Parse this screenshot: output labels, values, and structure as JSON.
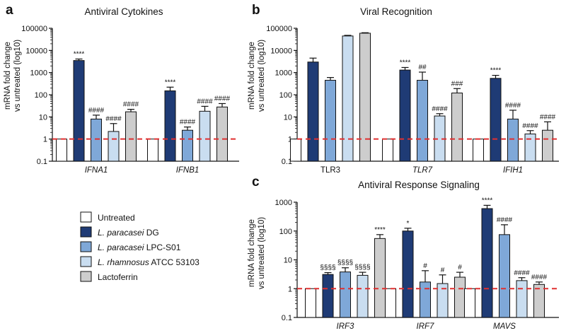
{
  "colors": {
    "untreated": "#ffffff",
    "dg": "#1f3b75",
    "lpc": "#7fa8d8",
    "atcc": "#c9ddf0",
    "lactoferrin": "#cdcdcd",
    "baseline": "#e03030",
    "stroke": "#111111"
  },
  "legend": [
    {
      "key": "untreated",
      "prefix": "",
      "italic": "",
      "suffix": "Untreated"
    },
    {
      "key": "dg",
      "prefix": "",
      "italic": "L. paracasei",
      "suffix": " DG"
    },
    {
      "key": "lpc",
      "prefix": "",
      "italic": "L. paracasei",
      "suffix": " LPC-S01"
    },
    {
      "key": "atcc",
      "prefix": "",
      "italic": "L. rhamnosus",
      "suffix": " ATCC 53103"
    },
    {
      "key": "lactoferrin",
      "prefix": "",
      "italic": "",
      "suffix": "Lactoferrin"
    }
  ],
  "chart_data": [
    {
      "panel": "a",
      "type": "bar",
      "title": "Antiviral Cytokines",
      "ylabel": [
        "mRNA fold change",
        "vs untreated (log10)"
      ],
      "yscale": "log10",
      "ylim": [
        0.1,
        100000
      ],
      "yticks": [
        "0.1",
        "1",
        "10",
        "100",
        "1000",
        "10000",
        "100000"
      ],
      "baseline": 1,
      "categories": [
        {
          "label": "IFNA1",
          "italic": true
        },
        {
          "label": "IFNB1",
          "italic": true
        }
      ],
      "series_keys": [
        "untreated",
        "dg",
        "lpc",
        "atcc",
        "lactoferrin"
      ],
      "values": [
        [
          1,
          3500,
          8,
          2.2,
          17
        ],
        [
          1,
          150,
          2.5,
          18,
          28
        ]
      ],
      "errors": [
        [
          0,
          600,
          4,
          2.8,
          5
        ],
        [
          0,
          70,
          1,
          12,
          12
        ]
      ],
      "annotations": [
        [
          "",
          "****",
          "####",
          "####",
          "####"
        ],
        [
          "",
          "****",
          "####",
          "####",
          "####"
        ]
      ]
    },
    {
      "panel": "b",
      "type": "bar",
      "title": "Viral Recognition",
      "ylabel": [
        "mRNA fold change",
        "vs untreated (log10)"
      ],
      "yscale": "log10",
      "ylim": [
        0.1,
        100000
      ],
      "yticks": [
        "0.1",
        "1",
        "10",
        "100",
        "1000",
        "10000",
        "100000"
      ],
      "baseline": 1,
      "categories": [
        {
          "label": "TLR3",
          "italic": false
        },
        {
          "label": "TLR7",
          "italic": true
        },
        {
          "label": "IFIH1",
          "italic": true
        }
      ],
      "series_keys": [
        "untreated",
        "dg",
        "lpc",
        "atcc",
        "lactoferrin"
      ],
      "values": [
        [
          1,
          3000,
          450,
          45000,
          60000
        ],
        [
          1,
          1300,
          450,
          11,
          120
        ],
        [
          1,
          550,
          8,
          1.7,
          2.5
        ]
      ],
      "errors": [
        [
          0,
          1500,
          150,
          3000,
          3000
        ],
        [
          0,
          400,
          600,
          3,
          70
        ],
        [
          0,
          200,
          12,
          0.7,
          3.5
        ]
      ],
      "annotations": [
        [
          "",
          "",
          "",
          "",
          ""
        ],
        [
          "",
          "****",
          "##",
          "####",
          "###"
        ],
        [
          "",
          "****",
          "####",
          "####",
          "####"
        ]
      ]
    },
    {
      "panel": "c",
      "type": "bar",
      "title": "Antiviral Response Signaling",
      "ylabel": [
        "mRNA fold change",
        "vs untreated (log10)"
      ],
      "yscale": "log10",
      "ylim": [
        0.1,
        1000
      ],
      "yticks": [
        "0.1",
        "1",
        "10",
        "100",
        "1000"
      ],
      "baseline": 1,
      "categories": [
        {
          "label": "IRF3",
          "italic": true
        },
        {
          "label": "IRF7",
          "italic": true
        },
        {
          "label": "MAVS",
          "italic": true
        }
      ],
      "series_keys": [
        "untreated",
        "dg",
        "lpc",
        "atcc",
        "lactoferrin"
      ],
      "values": [
        [
          1,
          3.1,
          3.8,
          2.9,
          55
        ],
        [
          1,
          100,
          1.7,
          1.5,
          2.5
        ],
        [
          1,
          600,
          75,
          1.9,
          1.4
        ]
      ],
      "errors": [
        [
          0,
          0.5,
          1.5,
          0.8,
          20
        ],
        [
          0,
          25,
          2.5,
          1.5,
          1.2
        ],
        [
          0,
          180,
          90,
          0.5,
          0.3
        ]
      ],
      "annotations": [
        [
          "",
          "§§§§",
          "§§§§",
          "§§§§",
          "****"
        ],
        [
          "",
          "*",
          "#",
          "#",
          "#"
        ],
        [
          "",
          "****",
          "####",
          "####",
          "####"
        ]
      ]
    }
  ]
}
